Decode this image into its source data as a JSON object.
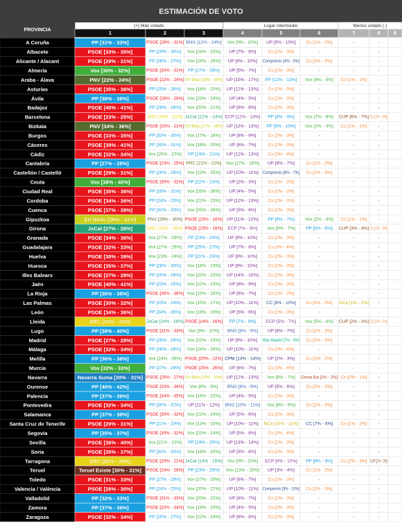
{
  "header": {
    "title": "ESTIMACIÓN DE VOTO"
  },
  "table": {
    "province_header": "PROVINCIA",
    "groups": [
      "(+) Más votado",
      "Lugar intermedio",
      "Menos votado (-)"
    ],
    "columns": [
      "1",
      "2",
      "3",
      "4",
      "5",
      "6",
      "7",
      "8",
      "9"
    ],
    "party_colors": {
      "PP": "#1aa0e0",
      "PSOE": "#e8141c",
      "Vox": "#3fae3a",
      "UP": "#7a2f8f",
      "Cs": "#f08a3c",
      "BNG": "#3b6fb6",
      "EH Bildu": "#c9cf1a",
      "PNV": "#556b2f",
      "ERC": "#e8d21a",
      "JxCat": "#27a37a",
      "ECP": "#8a3f9a",
      "CUP": "#8a4a1a",
      "PRC": "#6b7a1a",
      "Compromís": "#2b4f8f",
      "CC": "#2b4a8a",
      "NCa": "#c7b21a",
      "Más Madrid": "#0fb58f",
      "CPM": "#1f3f7a",
      "Navarra Suma": "#1f7fc0",
      "Geroa Bai": "#b44a2a",
      "Teruel Existe": "#6b2f1f",
      "-": "#555555"
    },
    "rows": [
      [
        "A Coruña",
        "PP [31% - 33%]",
        "PSOE [28% - 31%]",
        "BNG [12% - 14%]",
        "Vox [9% - 10%]",
        "UP [9% - 10%]",
        "Cs [1% - 2%]",
        "-",
        "-"
      ],
      [
        "Albacete",
        "PSOE [33% - 35%]",
        "PP [29% - 30%]",
        "Vox [24% - 25%]",
        "UP [7% - 8%]",
        "Cs [2% - 3%]",
        "-",
        "-",
        "-"
      ],
      [
        "Alicante / Alacant",
        "PSOE [29% - 31%]",
        "PP [26% - 27%]",
        "Vox [24% - 26%]",
        "UP [9% - 10%]",
        "Compromís [4% - 5%]",
        "Cs [2% - 3%]",
        "-",
        "-"
      ],
      [
        "Almería",
        "Vox [30% - 32%]",
        "PSOE [30% - 31%]",
        "PP [27% - 28%]",
        "UP [5% - 7%]",
        "Cs [2% - 3%]",
        "-",
        "-",
        "-"
      ],
      [
        "Araba - Álava",
        "PNV [22% - 24%]",
        "PSOE [22% - 24%]",
        "EH Bildu [18% - 19%]",
        "UP [15% - 17%]",
        "PP [12% - 13%]",
        "Vox [4% - 5%]",
        "Cs [1% - 1%]",
        "-"
      ],
      [
        "Asturias",
        "PSOE [35% - 36%]",
        "PP [25% - 26%]",
        "Vox [18% - 20%]",
        "UP [12% - 13%]",
        "Cs [2% - 3%]",
        "-",
        "-",
        "-"
      ],
      [
        "Ávila",
        "PP [36% - 38%]",
        "PSOE [28% - 29%]",
        "Vox [23% - 24%]",
        "UP [4% - 5%]",
        "Cs [2% - 3%]",
        "-",
        "-",
        "-"
      ],
      [
        "Badajoz",
        "PSOE [40% - 41%]",
        "PP [26% - 28%]",
        "Vox [20% - 21%]",
        "UP [6% - 8%]",
        "Cs [2% - 3%]",
        "-",
        "-",
        "-"
      ],
      [
        "Barcelona",
        "PSOE [23% - 25%]",
        "ERC [20% - 22%]",
        "JxCat [12% - 14%]",
        "ECP [12% - 13%]",
        "PP [8% - 9%]",
        "Vox [7% - 8%]",
        "CUP [6% - 7%]",
        "Cs [2% - 3%]"
      ],
      [
        "Bizkaia",
        "PNV [34% - 36%]",
        "PSOE [20% - 21%]",
        "EH Bildu [17% - 18%]",
        "UP [12% - 13%]",
        "PP [9% - 10%]",
        "Vox [2% - 3%]",
        "Cs [1% - 1%]",
        "-"
      ],
      [
        "Burgos",
        "PSOE [33% - 35%]",
        "PP [33% - 35%]",
        "Vox [17% - 18%]",
        "UP [8% - 9%]",
        "Cs [2% - 3%]",
        "-",
        "-",
        "-"
      ],
      [
        "Cáceres",
        "PSOE [39% - 41%]",
        "PP [30% - 31%]",
        "Vox [18% - 20%]",
        "UP [6% - 7%]",
        "Cs [2% - 3%]",
        "-",
        "-",
        "-"
      ],
      [
        "Cádiz",
        "PSOE [32% - 34%]",
        "Vox [25% - 27%]",
        "PP [19% - 21%]",
        "UP [12% - 13%]",
        "Cs [3% - 4%]",
        "-",
        "-",
        "-"
      ],
      [
        "Cantabria",
        "PP [27% - 28%]",
        "PSOE [23% - 25%]",
        "PRC [21% - 22%]",
        "Vox [17% - 18%]",
        "UP [6% - 7%]",
        "Cs [1% - 2%]",
        "-",
        "-"
      ],
      [
        "Castellón / Castelló",
        "PSOE [29% - 31%]",
        "PP [26% - 28%]",
        "Vox [23% - 25%]",
        "UP [10% - 11%]",
        "Compromís [6% - 7%]",
        "Cs [2% - 3%]",
        "-",
        "-"
      ],
      [
        "Ceuta",
        "Vox [38% - 40%]",
        "PSOE [30% - 32%]",
        "PP [22% - 23%]",
        "UP [2% - 3%]",
        "Cs [1% - 2%]",
        "-",
        "-",
        "-"
      ],
      [
        "Ciudad Real",
        "PSOE [35% - 36%]",
        "PP [29% - 31%]",
        "Vox [25% - 26%]",
        "UP [4% - 5%]",
        "Cs [1% - 2%]",
        "-",
        "-",
        "-"
      ],
      [
        "Cordoba",
        "PSOE [34% - 36%]",
        "PP [24% - 25%]",
        "Vox [22% - 23%]",
        "UP [12% - 13%]",
        "Cs [2% - 3%]",
        "-",
        "-",
        "-"
      ],
      [
        "Cuenca",
        "PSOE [37% - 39%]",
        "PP [32% - 33%]",
        "Vox [25% - 26%]",
        "UP [5% - 6%]",
        "Cs [2% - 3%]",
        "-",
        "-",
        "-"
      ],
      [
        "Gipuzkoa",
        "EH Bildu [29% - 31%]",
        "PNV [28% - 30%]",
        "PSOE [15% - 16%]",
        "UP [11% - 12%]",
        "PP [6% - 7%]",
        "Vox [2% - 3%]",
        "Cs [1% - 1%]",
        "-"
      ],
      [
        "Girona",
        "JxCat [27% - 28%]",
        "ERC [25% - 26%]",
        "PSOE [15% - 16%]",
        "ECP [7% - 8%]",
        "Vox [6% - 7%]",
        "PP [5% - 6%]",
        "CUP [3% - 4%]",
        "Cs [1% - 2%]"
      ],
      [
        "Granada",
        "PSOE [34% - 36%]",
        "Vox [27% - 29%]",
        "PP [23% - 24%]",
        "UP [9% - 10%]",
        "Cs [2% - 3%]",
        "-",
        "-",
        "-"
      ],
      [
        "Guadalajara",
        "PSOE [32% - 33%]",
        "Vox [27% - 29%]",
        "PP [25% - 27%]",
        "UP [7% - 8%]",
        "Cs [3% - 4%]",
        "-",
        "-",
        "-"
      ],
      [
        "Huelva",
        "PSOE [38% - 39%]",
        "Vox [23% - 24%]",
        "PP [21% - 23%]",
        "UP [9% - 10%]",
        "Cs [2% - 3%]",
        "-",
        "-",
        "-"
      ],
      [
        "Huesca",
        "PSOE [35% - 37%]",
        "PP [28% - 30%]",
        "Vox [18% - 19%]",
        "UP [9% - 10%]",
        "Cs [2% - 3%]",
        "-",
        "-",
        "-"
      ],
      [
        "Illes Balears",
        "PSOE [27% - 28%]",
        "PP [25% - 26%]",
        "Vox [22% - 23%]",
        "UP [14% - 15%]",
        "Cs [2% - 3%]",
        "-",
        "-",
        "-"
      ],
      [
        "Jaén",
        "PSOE [40% - 41%]",
        "PP [23% - 25%]",
        "Vox [22% - 23%]",
        "UP [8% - 9%]",
        "Cs [2% - 3%]",
        "-",
        "-",
        "-"
      ],
      [
        "La Rioja",
        "PP [36% - 38%]",
        "PSOE [36% - 38%]",
        "Vox [15% - 16%]",
        "UP [6% - 7%]",
        "Cs [1% - 2%]",
        "-",
        "-",
        "-"
      ],
      [
        "Las Palmas",
        "PSOE [30% - 32%]",
        "PP [23% - 24%]",
        "Vox [15% - 17%]",
        "UP [10% - 11%]",
        "CC [9% - 10%]",
        "Cs [2% - 3%]",
        "NCa [1% - 2%]",
        "-"
      ],
      [
        "León",
        "PSOE [34% - 36%]",
        "PP [34% - 36%]",
        "Vox [18% - 19%]",
        "UP [5% - 6%]",
        "Cs [2% - 3%]",
        "-",
        "-",
        "-"
      ],
      [
        "Lleida",
        "ERC [30% - 32%]",
        "JxCat [24% - 26%]",
        "PSOE [14% - 16%]",
        "PP [7% - 8%]",
        "ECP [5% - 7%]",
        "Vox [5% - 6%]",
        "CUP [2% - 3%]",
        "Cs [1% - 2%]"
      ],
      [
        "Lugo",
        "PP [38% - 40%]",
        "PSOE [31% - 33%]",
        "Vox [9% - 10%]",
        "BNG [8% - 9%]",
        "UP [6% - 7%]",
        "Cs [2% - 3%]",
        "-",
        "-"
      ],
      [
        "Madrid",
        "PSOE [27% - 29%]",
        "PP [26% - 28%]",
        "Vox [22% - 23%]",
        "UP [8% - 10%]",
        "Más Madrid [7% - 9%]",
        "Cs [2% - 3%]",
        "-",
        "-"
      ],
      [
        "Málaga",
        "PSOE [32% - 34%]",
        "PP [26% - 28%]",
        "Vox [24% - 26%]",
        "UP [10% - 11%]",
        "Cs [3% - 4%]",
        "-",
        "-",
        "-"
      ],
      [
        "Melilla",
        "PP [36% - 38%]",
        "Vox [24% - 26%]",
        "PSOE [20% - 22%]",
        "CPM [13% - 14%]",
        "UP [2% - 3%]",
        "Cs [1% - 2%]",
        "-",
        "-"
      ],
      [
        "Murcia",
        "Vox [32% - 33%]",
        "PP [27% - 29%]",
        "PSOE [25% - 26%]",
        "UP [6% - 7%]",
        "Cs [3% - 4%]",
        "-",
        "-",
        "-"
      ],
      [
        "Navarra",
        "Navarra Suma [30% - 31%]",
        "PSOE [25% - 27%]",
        "EH Bildu [19% - 20%]",
        "UP [12% - 13%]",
        "Vox [6% - 7%]",
        "Geroa Bai [3% - 3%]",
        "Cs [0% - 1%]",
        "-"
      ],
      [
        "Ourense",
        "PP [40% - 42%]",
        "PSOE [33% - 34%]",
        "Vox [8% - 9%]",
        "BNG [8% - 9%]",
        "UP [5% - 6%]",
        "Cs [2% - 3%]",
        "-",
        "-"
      ],
      [
        "Palencia",
        "PP [37% - 39%]",
        "PSOE [34% - 35%]",
        "Vox [19% - 20%]",
        "UP [4% - 5%]",
        "Cs [2% - 3%]",
        "-",
        "-",
        "-"
      ],
      [
        "Pontevedra",
        "PSOE [32% - 34%]",
        "PP [30% - 32%]",
        "UP [11% - 12%]",
        "BNG [10% - 11%]",
        "Vox [8% - 9%]",
        "Cs [2% - 3%]",
        "-",
        "-"
      ],
      [
        "Salamanca",
        "PP [37% - 38%]",
        "PSOE [30% - 32%]",
        "Vox [22% - 24%]",
        "UP [5% - 6%]",
        "Cs [2% - 3%]",
        "-",
        "-",
        "-"
      ],
      [
        "Santa Cruz de Tenerife",
        "PSOE [29% - 31%]",
        "PP [21% - 23%]",
        "Vox [13% - 15%]",
        "UP [10% - 11%]",
        "NCa [10% - 11%]",
        "CC [7% - 8%]",
        "Cs [1% - 2%]",
        "-"
      ],
      [
        "Segovia",
        "PP [35% - 37%]",
        "PSOE [30% - 32%]",
        "Vox [22% - 24%]",
        "UP [5% - 6%]",
        "Cs [3% - 4%]",
        "-",
        "-",
        "-"
      ],
      [
        "Sevilla",
        "PSOE [38% - 40%]",
        "Vox [21% - 22%]",
        "PP [19% - 20%]",
        "UP [13% - 14%]",
        "Cs [2% - 3%]",
        "-",
        "-",
        "-"
      ],
      [
        "Soria",
        "PSOE [35% - 37%]",
        "PP [32% - 33%]",
        "Vox [18% - 20%]",
        "UP [5% - 6%]",
        "Cs [2% - 3%]",
        "-",
        "-",
        "-"
      ],
      [
        "Tarragona",
        "ERC [26% - 28%]",
        "PSOE [20% - 21%]",
        "JxCat [14% - 16%]",
        "Vox [9% - 10%]",
        "ECP [9% - 10%]",
        "PP [8% - 9%]",
        "Cs [2% - 3%]",
        "CUP [1% - 2%]"
      ],
      [
        "Teruel",
        "Teruel Existe [30% - 31%]",
        "PSOE [24% - 26%]",
        "PP [23% - 25%]",
        "Vox [13% - 15%]",
        "UP [3% - 4%]",
        "Cs [1% - 2%]",
        "-",
        "-"
      ],
      [
        "Toledo",
        "PSOE [31% - 33%]",
        "PP [27% - 29%]",
        "Vox [27% - 29%]",
        "UP [6% - 7%]",
        "Cs [2% - 3%]",
        "-",
        "-",
        "-"
      ],
      [
        "Valencia / València",
        "PSOE [28% - 30%]",
        "PP [24% - 25%]",
        "Vox [20% - 22%]",
        "UP [10% - 11%]",
        "Compromís [9% - 10%]",
        "Cs [2% - 3%]",
        "-",
        "-"
      ],
      [
        "Valladolid",
        "PP [32% - 33%]",
        "PSOE [31% - 33%]",
        "Vox [20% - 22%]",
        "UP [6% - 7%]",
        "Cs [2% - 3%]",
        "-",
        "-",
        "-"
      ],
      [
        "Zamora",
        "PP [37% - 39%]",
        "PSOE [32% - 34%]",
        "Vox [19% - 20%]",
        "UP [4% - 5%]",
        "Cs [2% - 3%]",
        "-",
        "-",
        "-"
      ],
      [
        "Zaragoza",
        "PSOE [32% - 34%]",
        "PP [25% - 27%]",
        "Vox [22% - 24%]",
        "UP [6% - 8%]",
        "Cs [2% - 3%]",
        "-",
        "-",
        "-"
      ]
    ]
  }
}
